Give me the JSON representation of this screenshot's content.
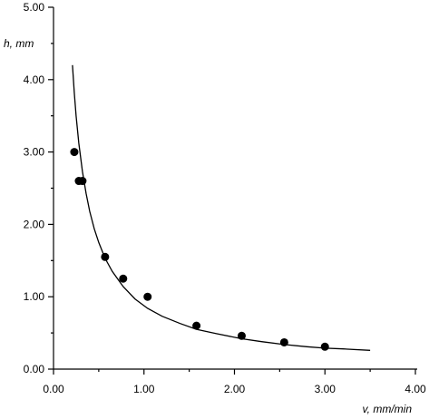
{
  "chart_data": {
    "type": "scatter",
    "xlabel": "v, mm/min",
    "ylabel": "h, mm",
    "xlim": [
      0,
      4
    ],
    "ylim": [
      0,
      5
    ],
    "x_ticks": [
      0,
      1,
      2,
      3,
      4
    ],
    "y_ticks": [
      0,
      1,
      2,
      3,
      4,
      5
    ],
    "x_tick_labels": [
      "0.00",
      "1.00",
      "2.00",
      "3.00",
      "4.00"
    ],
    "y_tick_labels": [
      "0.00",
      "1.00",
      "2.00",
      "3.00",
      "4.00",
      "5.00"
    ],
    "grid": false,
    "series": [
      {
        "kind": "points",
        "marker": "filled-circle",
        "x": [
          0.23,
          0.28,
          0.32,
          0.57,
          0.77,
          1.04,
          1.58,
          2.08,
          2.55,
          3.0
        ],
        "y": [
          3.0,
          2.6,
          2.6,
          1.55,
          1.25,
          1.0,
          0.6,
          0.46,
          0.37,
          0.31
        ]
      },
      {
        "kind": "fit-line",
        "x": [
          0.21,
          0.23,
          0.25,
          0.28,
          0.32,
          0.36,
          0.4,
          0.45,
          0.5,
          0.57,
          0.65,
          0.77,
          0.9,
          1.04,
          1.2,
          1.4,
          1.58,
          1.8,
          2.08,
          2.3,
          2.55,
          2.8,
          3.0,
          3.2,
          3.5
        ],
        "y": [
          4.2,
          3.82,
          3.5,
          3.12,
          2.73,
          2.43,
          2.18,
          1.94,
          1.75,
          1.53,
          1.35,
          1.14,
          0.97,
          0.84,
          0.73,
          0.63,
          0.55,
          0.49,
          0.42,
          0.38,
          0.34,
          0.31,
          0.29,
          0.28,
          0.26
        ]
      }
    ]
  }
}
